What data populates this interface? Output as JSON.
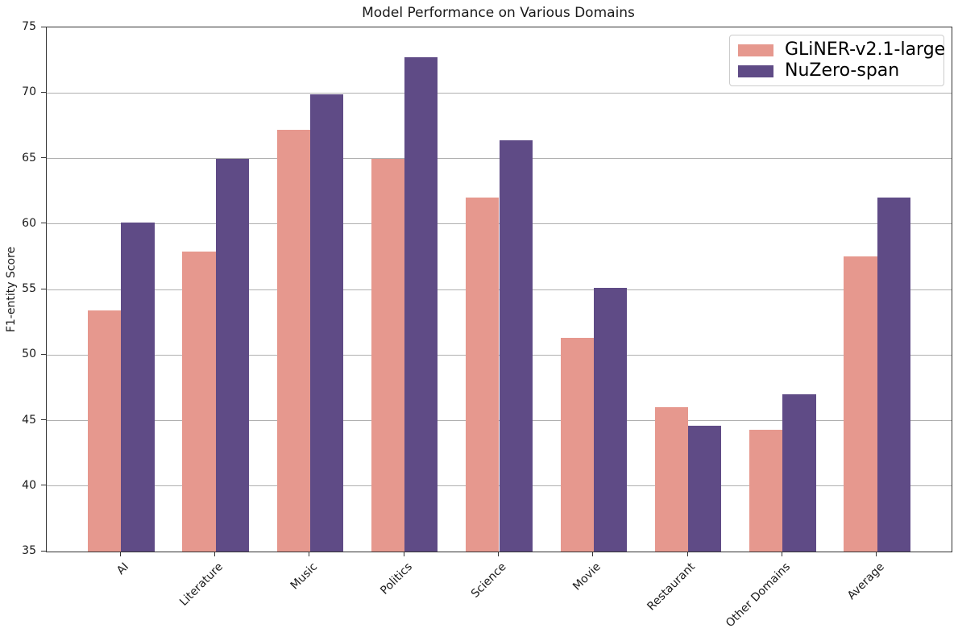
{
  "chart_data": {
    "type": "bar",
    "title": "Model Performance on Various Domains",
    "xlabel": "",
    "ylabel": "F1-entity Score",
    "ylim": [
      35,
      75
    ],
    "yticks": [
      35,
      40,
      45,
      50,
      55,
      60,
      65,
      70,
      75
    ],
    "grid": true,
    "legend_position": "upper right",
    "categories": [
      "AI",
      "Literature",
      "Music",
      "Politics",
      "Science",
      "Movie",
      "Restaurant",
      "Other Domains",
      "Average"
    ],
    "series": [
      {
        "name": "GLiNER-v2.1-large",
        "color": "#e6988e",
        "values": [
          53.4,
          57.9,
          67.2,
          65.0,
          62.0,
          51.3,
          46.0,
          44.3,
          57.5
        ]
      },
      {
        "name": "NuZero-span",
        "color": "#5f4b86",
        "values": [
          60.1,
          65.0,
          69.9,
          72.7,
          66.4,
          55.1,
          44.6,
          47.0,
          62.0
        ]
      }
    ],
    "colors": {
      "grid": "#b0b0b0",
      "spine": "#333333",
      "text": "#1a1a1a"
    }
  }
}
